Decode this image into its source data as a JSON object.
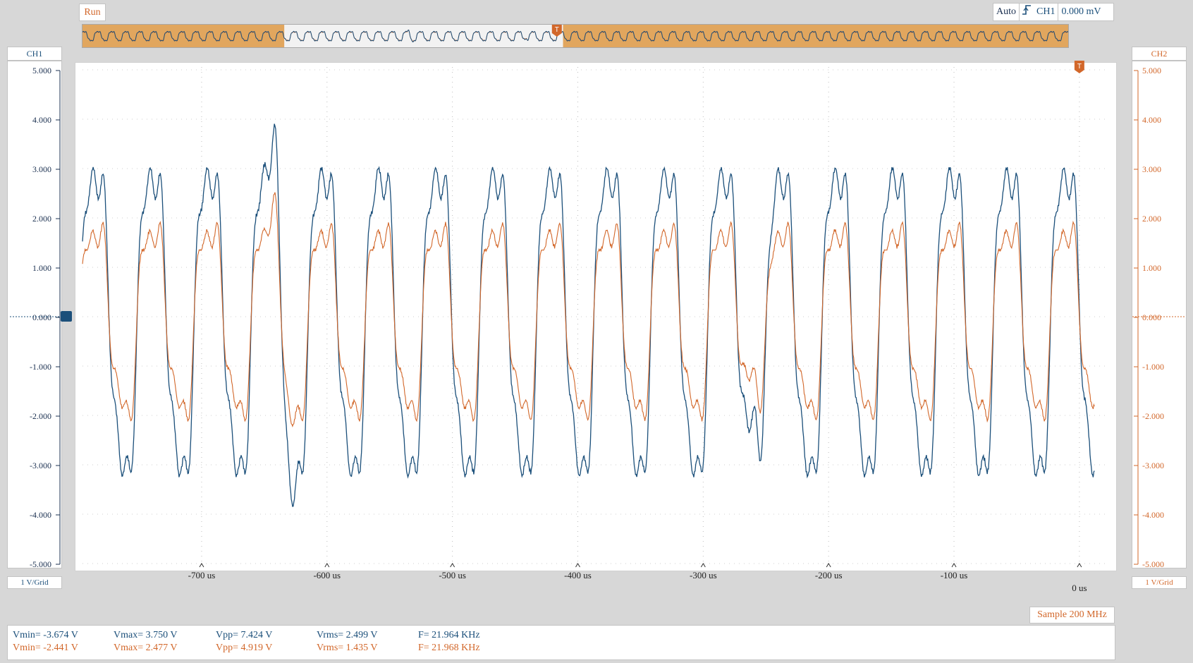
{
  "status": {
    "run_label": "Run"
  },
  "trigger": {
    "mode": "Auto",
    "edge_icon": "rising-edge-icon",
    "source": "CH1",
    "level": "0.000 mV",
    "marker": "T"
  },
  "channels": {
    "ch1": {
      "label": "CH1",
      "scale": "1 V/Grid",
      "color": "#1b4f7a"
    },
    "ch2": {
      "label": "CH2",
      "scale": "1 V/Grid",
      "color": "#d2672a"
    }
  },
  "y_axis_ticks": [
    "5.000",
    "4.000",
    "3.000",
    "2.000",
    "1.000",
    "0.000",
    "-1.000",
    "-2.000",
    "-3.000",
    "-4.000",
    "-5.000"
  ],
  "x_axis_ticks": [
    "-700 us",
    "-600 us",
    "-500 us",
    "-400 us",
    "-300 us",
    "-200 us",
    "-100 us",
    "0 us"
  ],
  "acquisition": {
    "sample_rate": "Sample 200 MHz"
  },
  "measurements": {
    "ch1": {
      "vmin": "Vmin= -3.674 V",
      "vmax": "Vmax= 3.750 V",
      "vpp": "Vpp= 7.424 V",
      "vrms": "Vrms= 2.499 V",
      "freq": "F= 21.964 KHz"
    },
    "ch2": {
      "vmin": "Vmin= -2.441 V",
      "vmax": "Vmax= 2.477 V",
      "vpp": "Vpp= 4.919 V",
      "vrms": "Vrms= 1.435 V",
      "freq": "F= 21.968 KHz"
    }
  },
  "chart_data": {
    "type": "line",
    "x_unit": "us",
    "xlim": [
      -795,
      22
    ],
    "ylim": [
      -5,
      5
    ],
    "grid": true,
    "frequency_khz": 21.964,
    "series": [
      {
        "name": "CH1",
        "amplitude_peak_v": 3.75,
        "trough_v": -3.674,
        "color": "#1b4f7a"
      },
      {
        "name": "CH2",
        "amplitude_peak_v": 2.477,
        "trough_v": -2.441,
        "color": "#d2672a"
      }
    ]
  }
}
